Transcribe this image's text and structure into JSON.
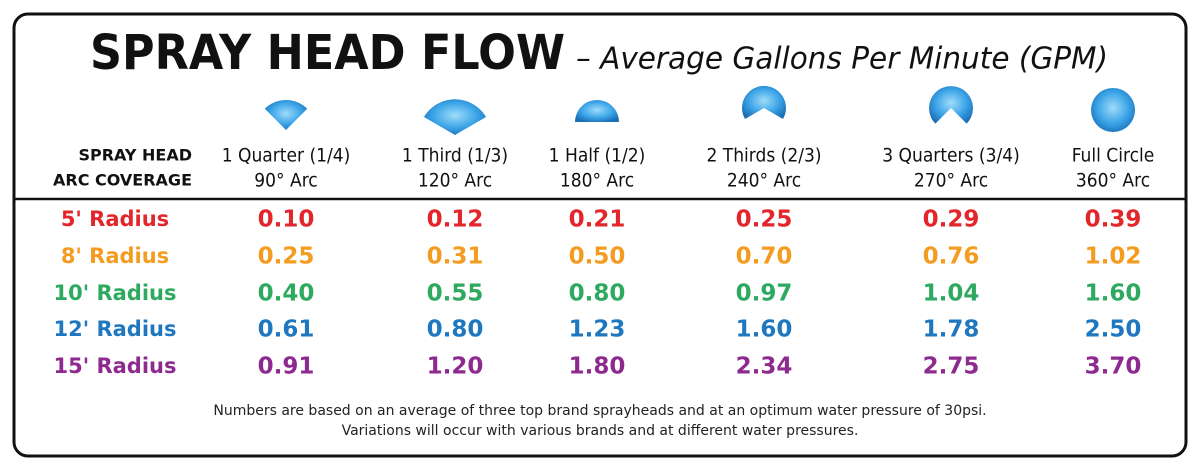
{
  "title": "SPRAY HEAD FLOW",
  "subtitle": "– Average Gallons Per Minute (GPM)",
  "table": {
    "header": [
      "SPRAY HEAD",
      "ARC COVERAGE"
    ],
    "columns": [
      [
        "1 Quarter (1/4)",
        "90° Arc"
      ],
      [
        "1 Third (1/3)",
        "120° Arc"
      ],
      [
        "1 Half (1/2)",
        "180° Arc"
      ],
      [
        "2 Thirds (2/3)",
        "240° Arc"
      ],
      [
        "3 Quarters (3/4)",
        "270° Arc"
      ],
      [
        "Full Circle",
        "360° Arc"
      ]
    ],
    "rows": [
      {
        "label": "5' Radius",
        "color": "#e3262b",
        "values": [
          "0.10",
          "0.12",
          "0.21",
          "0.25",
          "0.29",
          "0.39"
        ]
      },
      {
        "label": "8' Radius",
        "color": "#f39c1f",
        "values": [
          "0.25",
          "0.31",
          "0.50",
          "0.70",
          "0.76",
          "1.02"
        ]
      },
      {
        "label": "10' Radius",
        "color": "#2daa5f",
        "values": [
          "0.40",
          "0.55",
          "0.80",
          "0.97",
          "1.04",
          "1.60"
        ]
      },
      {
        "label": "12' Radius",
        "color": "#1f78bf",
        "values": [
          "0.61",
          "0.80",
          "1.23",
          "1.60",
          "1.78",
          "2.50"
        ]
      },
      {
        "label": "15' Radius",
        "color": "#8e2a8f",
        "values": [
          "0.91",
          "1.20",
          "1.80",
          "2.34",
          "2.75",
          "3.70"
        ]
      }
    ]
  },
  "footnote": [
    "Numbers are based on an average of three top brand sprayheads and at an optimum water pressure of 30psi.",
    "Variations will occur with various brands and at different water pressures."
  ]
}
